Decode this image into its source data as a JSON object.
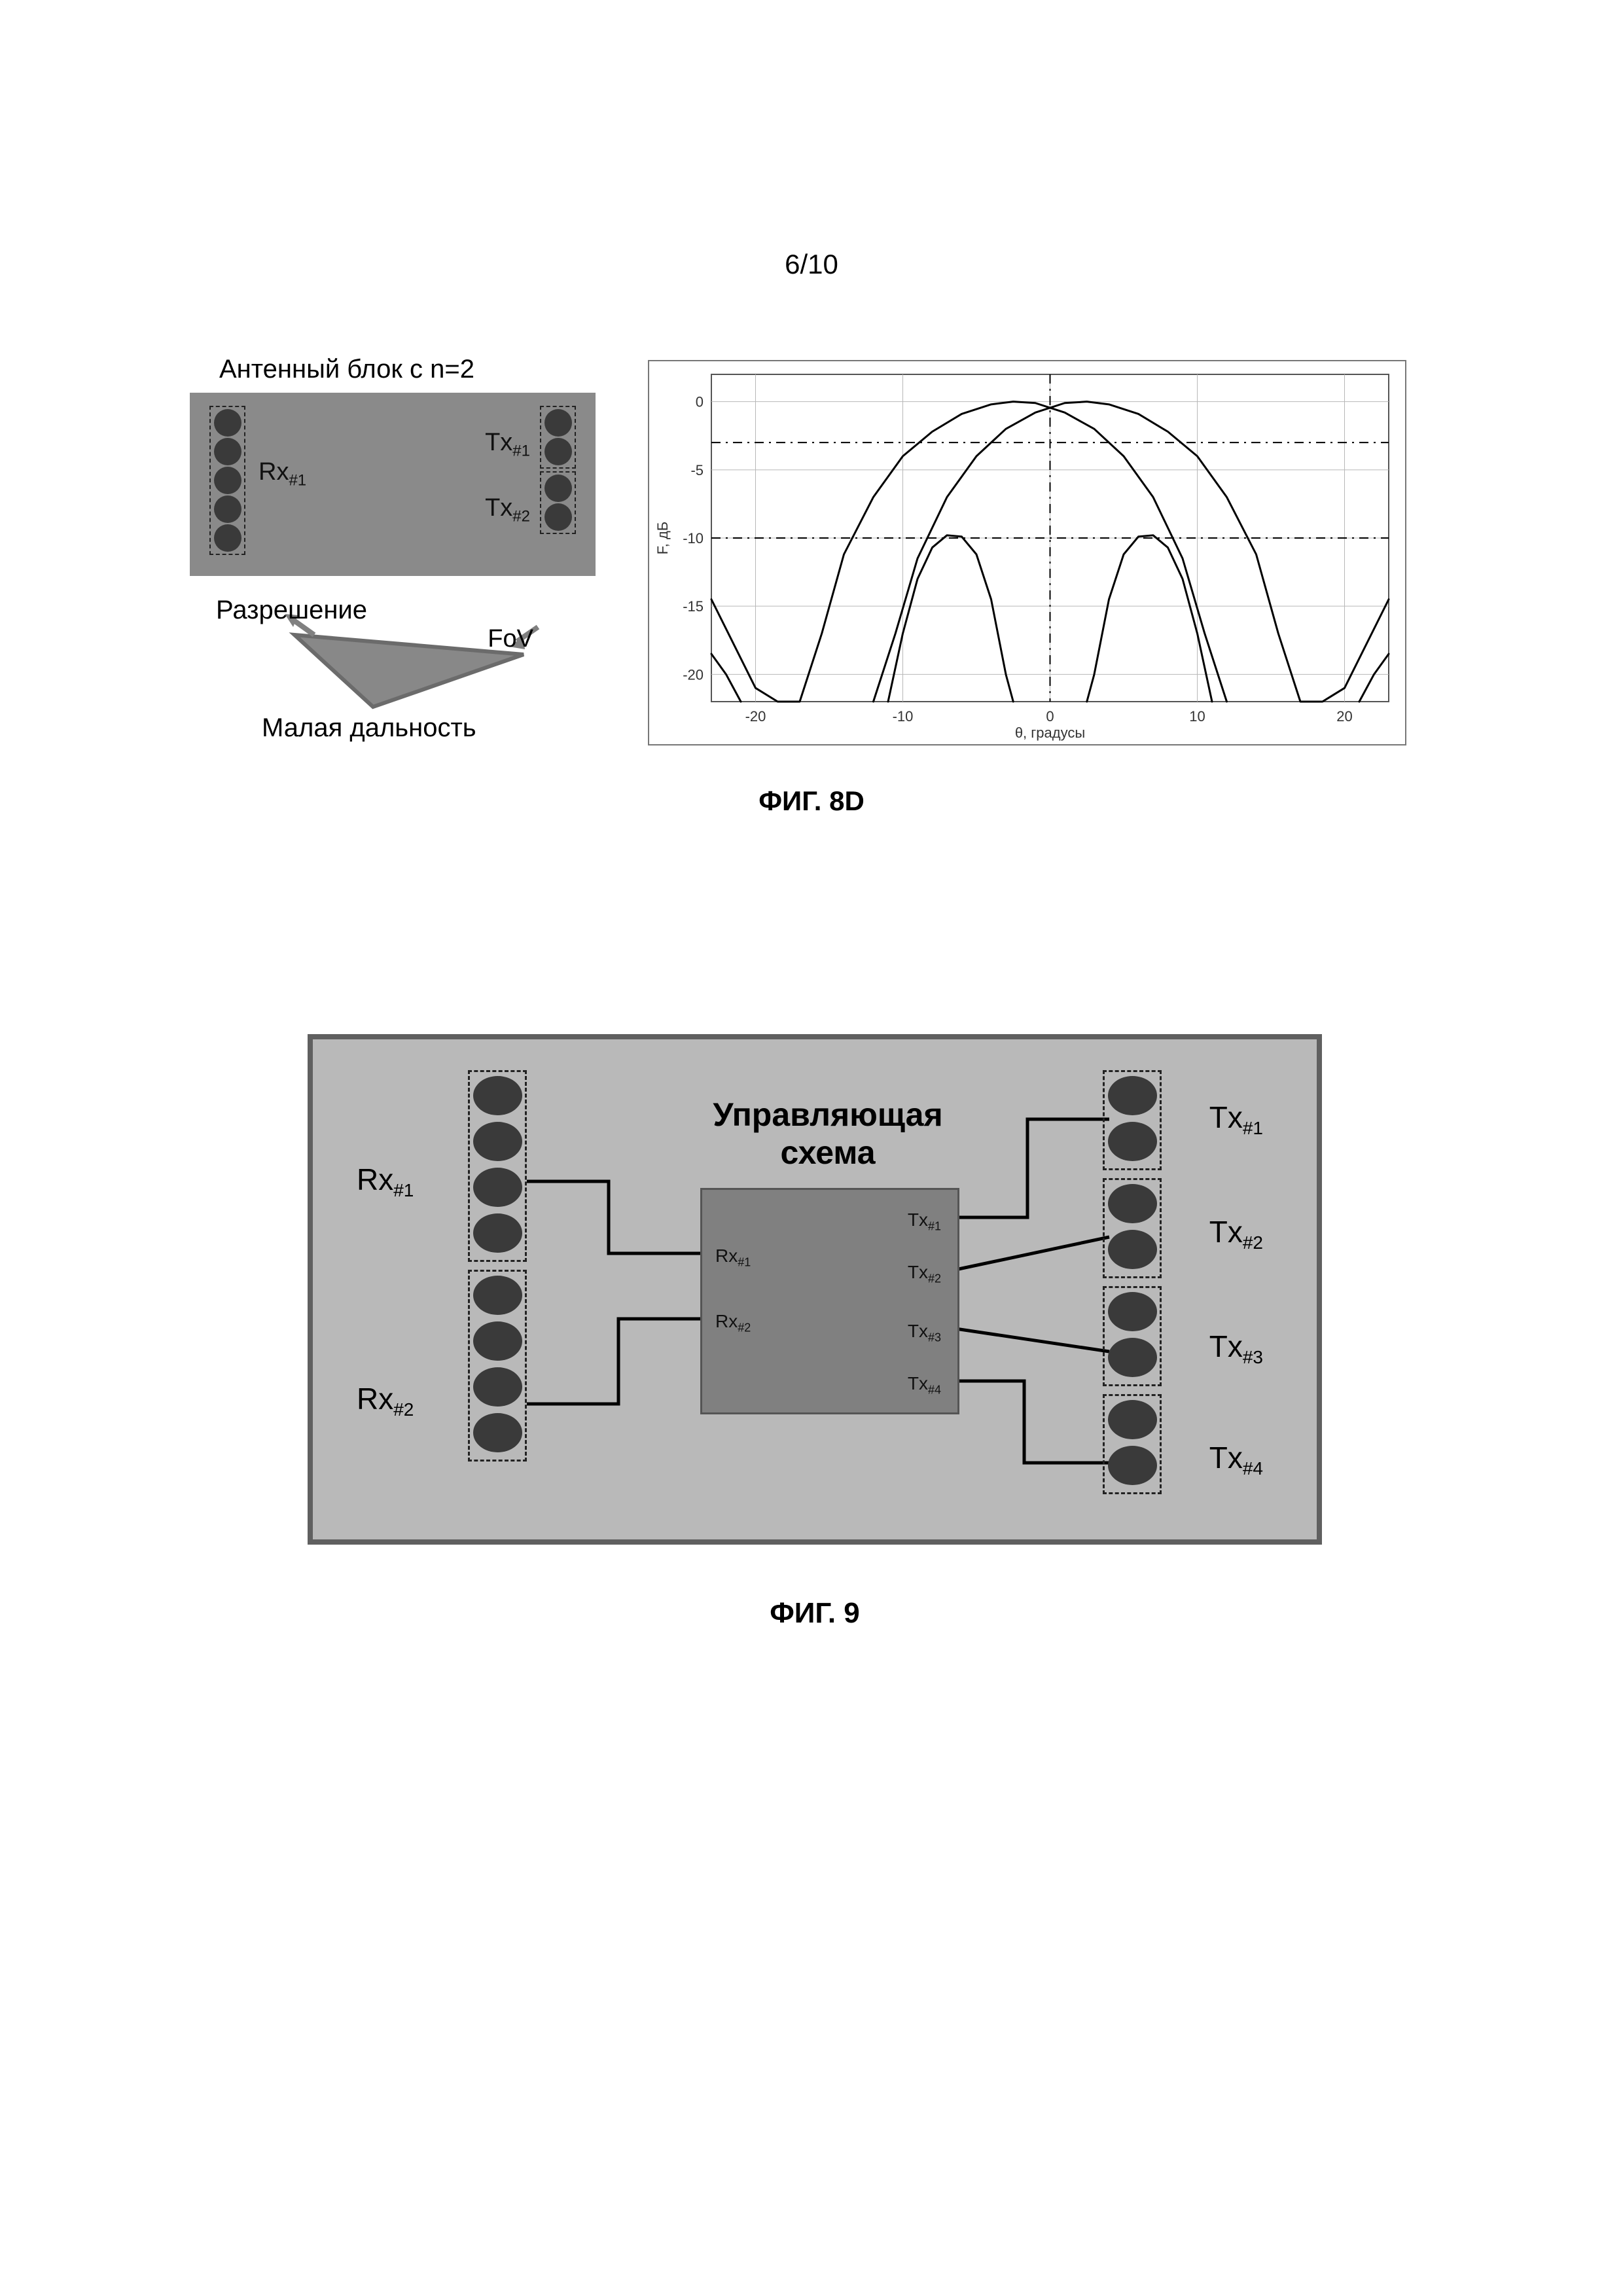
{
  "page_number": "6/10",
  "fig8d": {
    "antenna_title": "Антенный блок с n=2",
    "rx_label": "Rx",
    "rx_sub": "#1",
    "tx1_label": "Tx",
    "tx1_sub": "#1",
    "tx2_label": "Tx",
    "tx2_sub": "#2",
    "razreshenie": "Разрешение",
    "fov": "FoV",
    "malaya_dalnost": "Малая дальность",
    "caption": "ФИГ. 8D",
    "panel_bg": "#8a8a8a",
    "dot_color": "#3a3a3a",
    "chart": {
      "type": "line",
      "background_color": "#ffffff",
      "border_color": "#777777",
      "grid_color": "#b8b8b8",
      "xlim": [
        -23,
        23
      ],
      "ylim": [
        -22,
        2
      ],
      "xticks": [
        -20,
        -10,
        0,
        10,
        20
      ],
      "yticks": [
        -20,
        -15,
        -10,
        -5,
        0
      ],
      "xlabel": "θ, градусы",
      "ylabel": "F, дБ",
      "label_fontsize": 22,
      "tick_fontsize": 22,
      "line_color": "#000000",
      "line_width": 3,
      "hline_dash": [
        -3,
        -10
      ],
      "hline_style": "dash-dot",
      "vline_x": 0,
      "curves": {
        "main_left": [
          [
            -23,
            -14.5
          ],
          [
            -20,
            -21
          ],
          [
            -18.5,
            -22
          ],
          [
            -17,
            -22
          ],
          [
            -15.5,
            -17
          ],
          [
            -14,
            -11.2
          ],
          [
            -12,
            -7.0
          ],
          [
            -10,
            -4.0
          ],
          [
            -8,
            -2.2
          ],
          [
            -6,
            -0.9
          ],
          [
            -4,
            -0.2
          ],
          [
            -2.5,
            0
          ],
          [
            -1,
            -0.1
          ],
          [
            1,
            -0.8
          ],
          [
            3,
            -2.0
          ],
          [
            5,
            -4.0
          ],
          [
            7,
            -7.0
          ],
          [
            9,
            -11.5
          ],
          [
            10.5,
            -17
          ],
          [
            12,
            -22
          ]
        ],
        "main_right": [
          [
            -12,
            -22
          ],
          [
            -10.5,
            -17
          ],
          [
            -9,
            -11.5
          ],
          [
            -7,
            -7.0
          ],
          [
            -5,
            -4.0
          ],
          [
            -3,
            -2.0
          ],
          [
            -1,
            -0.8
          ],
          [
            1,
            -0.1
          ],
          [
            2.5,
            0
          ],
          [
            4,
            -0.2
          ],
          [
            6,
            -0.9
          ],
          [
            8,
            -2.2
          ],
          [
            10,
            -4.0
          ],
          [
            12,
            -7.0
          ],
          [
            14,
            -11.2
          ],
          [
            15.5,
            -17
          ],
          [
            17,
            -22
          ],
          [
            18.5,
            -22
          ],
          [
            20,
            -21
          ],
          [
            23,
            -14.5
          ]
        ],
        "side_left_a": [
          [
            -23,
            -18.5
          ],
          [
            -22,
            -20
          ],
          [
            -21,
            -22
          ]
        ],
        "side_left_b": [
          [
            -11,
            -22
          ],
          [
            -10,
            -17
          ],
          [
            -9,
            -13
          ],
          [
            -8,
            -10.7
          ],
          [
            -7,
            -9.8
          ],
          [
            -6,
            -9.9
          ],
          [
            -5,
            -11.2
          ],
          [
            -4,
            -14.5
          ],
          [
            -3,
            -20
          ],
          [
            -2.5,
            -22
          ]
        ],
        "side_right_b": [
          [
            2.5,
            -22
          ],
          [
            3,
            -20
          ],
          [
            4,
            -14.5
          ],
          [
            5,
            -11.2
          ],
          [
            6,
            -9.9
          ],
          [
            7,
            -9.8
          ],
          [
            8,
            -10.7
          ],
          [
            9,
            -13
          ],
          [
            10,
            -17
          ],
          [
            11,
            -22
          ]
        ],
        "side_right_a": [
          [
            21,
            -22
          ],
          [
            22,
            -20
          ],
          [
            23,
            -18.5
          ]
        ]
      }
    }
  },
  "fig9": {
    "panel_bg": "#b9b9b9",
    "panel_border": "#606060",
    "dot_color": "#3a3a3a",
    "ctrl_bg": "#808080",
    "ctrl_title": "Управляющая\nсхема",
    "rx1": "Rx",
    "rx1_sub": "#1",
    "rx2": "Rx",
    "rx2_sub": "#2",
    "tx1": "Tx",
    "tx1_sub": "#1",
    "tx2": "Tx",
    "tx2_sub": "#2",
    "tx3": "Tx",
    "tx3_sub": "#3",
    "tx4": "Tx",
    "tx4_sub": "#4",
    "port_rx1": "Rx",
    "port_rx1_sub": "#1",
    "port_rx2": "Rx",
    "port_rx2_sub": "#2",
    "port_tx1": "Tx",
    "port_tx1_sub": "#1",
    "port_tx2": "Tx",
    "port_tx2_sub": "#2",
    "port_tx3": "Tx",
    "port_tx3_sub": "#3",
    "port_tx4": "Tx",
    "port_tx4_sub": "#4",
    "wire_color": "#000000",
    "wire_width": 5,
    "caption": "ФИГ. 9"
  }
}
